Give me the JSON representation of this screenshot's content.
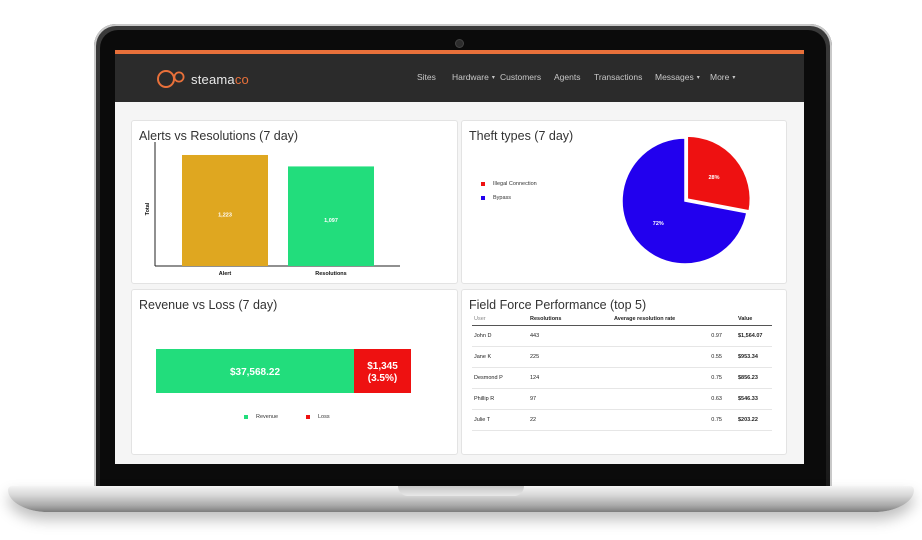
{
  "brand": {
    "name_prefix": "steama",
    "name_suffix": "co",
    "accent": "#e8703a"
  },
  "nav": {
    "items": [
      {
        "label": "Sites"
      },
      {
        "label": "Hardware",
        "has_dropdown": true
      },
      {
        "label": "Customers"
      },
      {
        "label": "Agents"
      },
      {
        "label": "Transactions"
      },
      {
        "label": "Messages",
        "has_dropdown": true
      },
      {
        "label": "More",
        "has_dropdown": true
      }
    ]
  },
  "cards": {
    "alerts": {
      "title": "Alerts vs Resolutions (7 day)",
      "chart_data": {
        "type": "bar",
        "title": "",
        "xlabel": "",
        "ylabel": "Total",
        "categories": [
          "Alert",
          "Resolutions"
        ],
        "values": [
          1223,
          1097
        ],
        "value_labels": [
          "1,223",
          "1,097"
        ],
        "colors": [
          "#dfa720",
          "#22dd7c"
        ],
        "ylim": [
          0,
          1300
        ],
        "grid": false
      }
    },
    "theft": {
      "title": "Theft types (7 day)",
      "chart_data": {
        "type": "pie",
        "labels": [
          "Illegal Connection",
          "Bypass"
        ],
        "values": [
          28,
          72
        ],
        "value_labels": [
          "28%",
          "72%"
        ],
        "colors": [
          "#ee1111",
          "#2200ee"
        ],
        "legend_position": "left"
      }
    },
    "revenue": {
      "title": "Revenue vs Loss (7 day)",
      "chart_data": {
        "type": "bar",
        "orientation": "horizontal-stacked",
        "categories": [
          "Revenue",
          "Loss"
        ],
        "values": [
          37568.22,
          1345
        ],
        "labels": [
          "$37,568.22",
          "$1,345"
        ],
        "loss_percent_label": "(3.5%)",
        "colors": [
          "#22dd7c",
          "#ee1111"
        ],
        "legend_position": "bottom"
      }
    },
    "field_force": {
      "title": "Field Force Performance (top 5)",
      "columns": [
        "User",
        "Resolutions",
        "Average resolution rate",
        "Value"
      ],
      "rows": [
        {
          "user": "John D",
          "resolutions": "443",
          "rate": "0.97",
          "value": "$1,564.07"
        },
        {
          "user": "Jane K",
          "resolutions": "225",
          "rate": "0.55",
          "value": "$953.34"
        },
        {
          "user": "Desmond P",
          "resolutions": "124",
          "rate": "0.75",
          "value": "$856.23"
        },
        {
          "user": "Phillip R",
          "resolutions": "97",
          "rate": "0.63",
          "value": "$546.33"
        },
        {
          "user": "Julie T",
          "resolutions": "22",
          "rate": "0.75",
          "value": "$203.22"
        }
      ]
    }
  }
}
